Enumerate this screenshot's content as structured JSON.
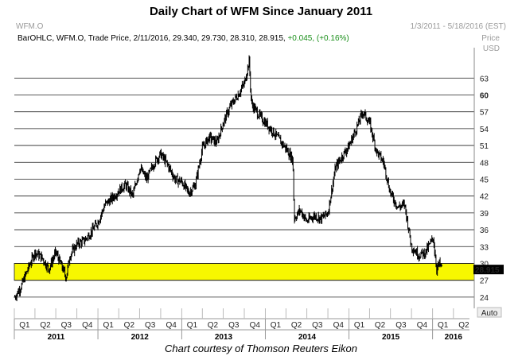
{
  "title": "Daily Chart of WFM Since January 2011",
  "caption": "Chart courtesy of Thomson Reuters Eikon",
  "header": {
    "symbol": "WFM.O",
    "date_range": "1/3/2011 - 5/18/2016 (EST)",
    "legend_prefix": "BarOHLC, WFM.O, Trade Price, 2/11/2016, 29.340, 29.730, 28.310, 28.915,",
    "change": "+0.045, (+0.16%)",
    "price_label": "Price",
    "currency_label": "USD",
    "last_price_badge": "28.915",
    "auto_label": "Auto"
  },
  "colors": {
    "highlight_band": "#f7f700",
    "bars": "#000000",
    "positive_change": "#1a8f1a",
    "header_gray": "#9a9a9a",
    "badge_bg": "#000000",
    "badge_text": "#ffffff"
  },
  "chart_data": {
    "type": "ohlc",
    "title": "Daily Chart of WFM Since January 2011",
    "ylim": [
      22,
      67
    ],
    "y_ticks": [
      24,
      27,
      30,
      33,
      36,
      39,
      42,
      45,
      48,
      51,
      54,
      57,
      60,
      63
    ],
    "y_tick_bold": 60,
    "grid": "horizontal",
    "highlight_band": [
      27,
      30
    ],
    "x_ticks": [
      "Q1",
      "Q2",
      "Q3",
      "Q4",
      "Q1",
      "Q2",
      "Q3",
      "Q4",
      "Q1",
      "Q2",
      "Q3",
      "Q4",
      "Q1",
      "Q2",
      "Q3",
      "Q4",
      "Q1",
      "Q2",
      "Q3",
      "Q4",
      "Q1",
      "Q2"
    ],
    "years": [
      "2011",
      "2012",
      "2013",
      "2014",
      "2015",
      "2016"
    ],
    "series": [
      {
        "x": [
          "2011-01-03",
          "2011-02-01",
          "2011-03-01",
          "2011-04-01",
          "2011-05-02",
          "2011-06-01",
          "2011-07-01",
          "2011-08-01",
          "2011-08-15",
          "2011-09-01",
          "2011-10-03",
          "2011-11-01",
          "2011-12-01",
          "2012-01-03",
          "2012-02-01",
          "2012-03-01",
          "2012-04-02",
          "2012-05-01",
          "2012-06-01",
          "2012-07-02",
          "2012-08-01",
          "2012-09-04",
          "2012-10-01",
          "2012-11-01",
          "2012-12-03",
          "2013-01-02",
          "2013-02-01",
          "2013-03-01",
          "2013-04-01",
          "2013-05-01",
          "2013-06-03",
          "2013-07-01",
          "2013-08-01",
          "2013-09-03",
          "2013-10-01",
          "2013-10-22",
          "2013-11-01",
          "2013-12-02",
          "2014-01-02",
          "2014-02-03",
          "2014-03-03",
          "2014-04-01",
          "2014-05-01",
          "2014-05-07",
          "2014-06-02",
          "2014-07-01",
          "2014-08-01",
          "2014-09-02",
          "2014-10-01",
          "2014-11-03",
          "2014-12-01",
          "2015-01-02",
          "2015-02-02",
          "2015-03-02",
          "2015-04-01",
          "2015-05-01",
          "2015-06-01",
          "2015-07-01",
          "2015-08-03",
          "2015-09-01",
          "2015-10-01",
          "2015-11-02",
          "2015-12-01",
          "2016-01-04",
          "2016-01-19",
          "2016-02-01",
          "2016-02-11"
        ],
        "y": [
          24.0,
          26.0,
          29.0,
          32.0,
          31.0,
          29.0,
          32.0,
          29.0,
          27.5,
          31.5,
          33.5,
          34.0,
          35.5,
          37.5,
          40.5,
          41.5,
          43.0,
          44.0,
          42.0,
          47.0,
          45.0,
          48.0,
          49.5,
          47.5,
          45.0,
          44.5,
          42.5,
          44.0,
          50.5,
          52.5,
          51.5,
          55.0,
          58.0,
          60.0,
          62.0,
          66.0,
          58.5,
          56.5,
          55.0,
          53.5,
          52.0,
          50.5,
          48.5,
          38.0,
          39.5,
          37.5,
          38.5,
          38.0,
          39.0,
          47.0,
          49.0,
          51.0,
          54.0,
          57.0,
          55.0,
          50.0,
          48.0,
          42.5,
          40.0,
          40.5,
          33.0,
          31.5,
          32.0,
          34.5,
          29.0,
          30.0,
          28.9
        ]
      }
    ]
  }
}
